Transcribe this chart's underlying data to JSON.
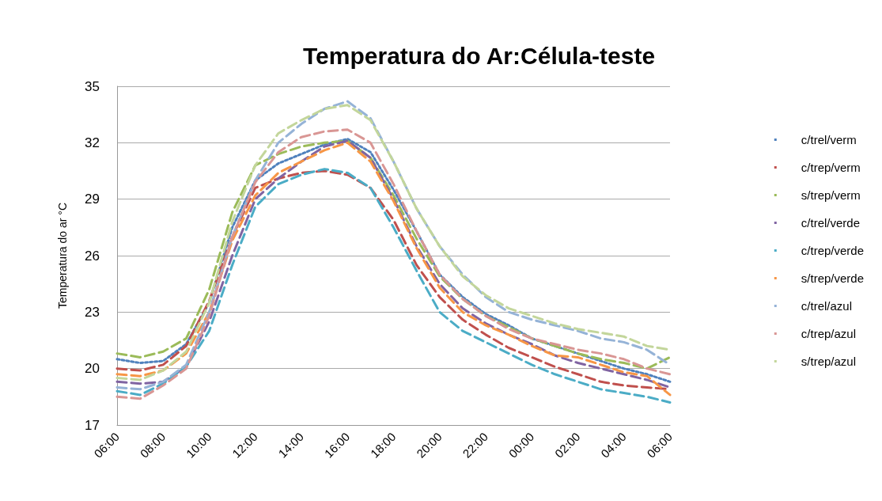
{
  "chart_data": {
    "type": "line",
    "title": "Temperatura do Ar:Célula-teste",
    "ylabel": "Temperatura do ar °C",
    "categories": [
      "06:00",
      null,
      "08:00",
      null,
      "10:00",
      null,
      "12:00",
      null,
      "14:00",
      null,
      "16:00",
      null,
      "18:00",
      null,
      "20:00",
      null,
      "22:00",
      null,
      "00:00",
      null,
      "02:00",
      null,
      "04:00",
      null,
      "06:00"
    ],
    "ylim": [
      17,
      35
    ],
    "yticks": [
      17,
      20,
      23,
      26,
      29,
      32,
      35
    ],
    "grid": "y",
    "legend": "right",
    "marker": "none",
    "series": [
      {
        "name": "c/trel/verm",
        "color": "#4f81bd",
        "line_style": "dotted",
        "values": [
          20.5,
          20.3,
          20.4,
          21.3,
          23.5,
          27.5,
          30.0,
          30.9,
          31.4,
          31.9,
          32.2,
          31.5,
          29.5,
          27.3,
          25.0,
          23.8,
          22.9,
          22.3,
          21.6,
          21.2,
          20.8,
          20.4,
          20.0,
          19.7,
          19.3
        ]
      },
      {
        "name": "c/trep/verm",
        "color": "#c0504d",
        "line_style": "dashed",
        "values": [
          20.0,
          19.9,
          20.2,
          21.2,
          23.6,
          27.0,
          29.6,
          30.1,
          30.4,
          30.5,
          30.3,
          29.6,
          27.9,
          25.5,
          23.8,
          22.6,
          21.8,
          21.1,
          20.6,
          20.1,
          19.7,
          19.3,
          19.1,
          19.0,
          18.9
        ]
      },
      {
        "name": "s/trep/verm",
        "color": "#9bbb59",
        "line_style": "dashed",
        "values": [
          20.8,
          20.6,
          20.9,
          21.6,
          24.2,
          28.3,
          30.8,
          31.4,
          31.8,
          32.0,
          32.1,
          31.2,
          29.2,
          26.9,
          24.9,
          23.7,
          22.8,
          22.2,
          21.6,
          21.2,
          20.8,
          20.5,
          20.3,
          20.0,
          20.6
        ]
      },
      {
        "name": "c/trel/verde",
        "color": "#8064a2",
        "line_style": "dashed",
        "values": [
          19.3,
          19.2,
          19.3,
          20.1,
          22.5,
          26.0,
          29.0,
          30.1,
          31.0,
          31.8,
          32.1,
          31.2,
          29.0,
          26.5,
          24.5,
          23.2,
          22.4,
          21.8,
          21.3,
          20.7,
          20.3,
          20.0,
          19.7,
          19.4,
          19.0
        ]
      },
      {
        "name": "c/trep/verde",
        "color": "#4bacc6",
        "line_style": "dashed",
        "values": [
          18.8,
          18.6,
          19.2,
          20.1,
          22.0,
          25.5,
          28.6,
          29.8,
          30.3,
          30.6,
          30.4,
          29.6,
          27.5,
          25.2,
          23.0,
          22.0,
          21.4,
          20.8,
          20.2,
          19.7,
          19.3,
          18.9,
          18.7,
          18.5,
          18.2
        ]
      },
      {
        "name": "s/trep/verde",
        "color": "#f79646",
        "line_style": "dashed",
        "values": [
          19.7,
          19.6,
          19.9,
          20.8,
          23.0,
          26.8,
          29.2,
          30.4,
          31.0,
          31.6,
          32.0,
          31.0,
          28.9,
          26.4,
          24.3,
          23.0,
          22.3,
          21.8,
          21.2,
          20.7,
          20.6,
          20.2,
          19.8,
          19.6,
          18.6
        ]
      },
      {
        "name": "c/trel/azul",
        "color": "#95b3d7",
        "line_style": "dashed",
        "values": [
          19.0,
          18.9,
          19.3,
          20.2,
          23.0,
          27.0,
          30.0,
          32.0,
          33.0,
          33.8,
          34.2,
          33.3,
          31.0,
          28.5,
          26.5,
          25.0,
          23.8,
          23.0,
          22.6,
          22.3,
          22.0,
          21.6,
          21.4,
          21.0,
          20.2
        ]
      },
      {
        "name": "c/trep/azul",
        "color": "#d99694",
        "line_style": "dashed",
        "values": [
          18.5,
          18.4,
          19.1,
          20.0,
          22.8,
          27.0,
          29.9,
          31.5,
          32.3,
          32.6,
          32.7,
          32.0,
          29.8,
          27.3,
          25.0,
          23.7,
          22.8,
          22.1,
          21.6,
          21.3,
          21.0,
          20.8,
          20.5,
          20.0,
          19.7
        ]
      },
      {
        "name": "s/trep/azul",
        "color": "#c3d69b",
        "line_style": "dashed",
        "values": [
          19.5,
          19.4,
          19.9,
          20.9,
          23.5,
          27.8,
          30.8,
          32.5,
          33.2,
          33.8,
          34.0,
          33.2,
          31.0,
          28.5,
          26.5,
          24.9,
          23.9,
          23.2,
          22.8,
          22.4,
          22.1,
          21.9,
          21.7,
          21.2,
          21.0
        ]
      }
    ]
  }
}
